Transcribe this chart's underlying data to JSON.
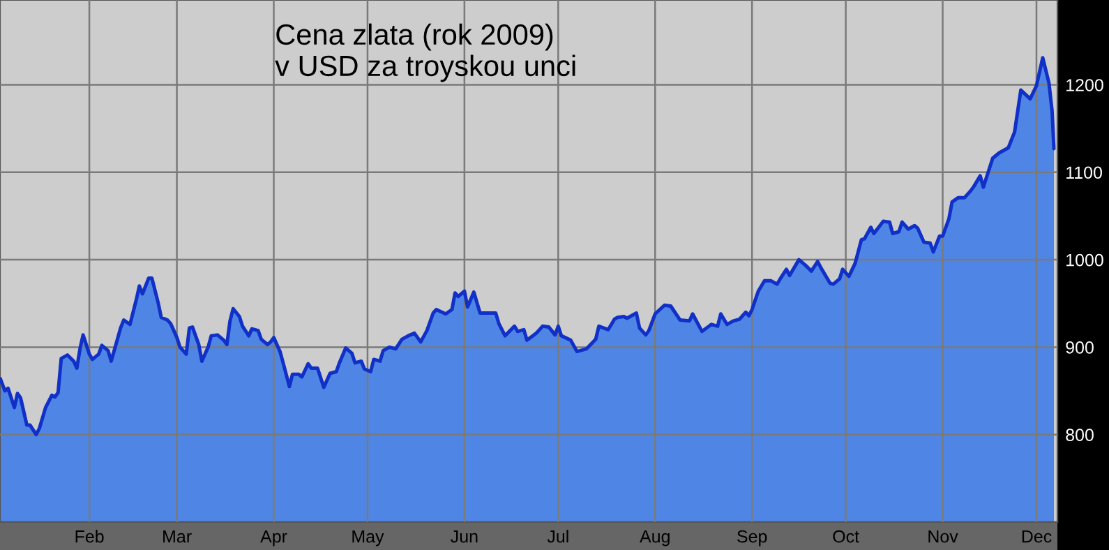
{
  "chart_data": {
    "type": "area",
    "title": "Cena zlata (rok 2009)\nv USD za troyskou unci",
    "x": [
      "2009-01-03T12:00",
      "2009-01-05",
      "2009-01-06",
      "2009-01-08",
      "2009-01-09",
      "2009-01-10",
      "2009-01-12",
      "2009-01-13",
      "2009-01-15",
      "2009-01-16",
      "2009-01-18",
      "2009-01-20",
      "2009-01-21",
      "2009-01-22",
      "2009-01-23",
      "2009-01-25",
      "2009-01-27",
      "2009-01-28",
      "2009-01-29",
      "2009-01-30",
      "2009-02-01",
      "2009-02-02",
      "2009-02-04",
      "2009-02-05",
      "2009-02-07",
      "2009-02-08",
      "2009-02-11",
      "2009-02-12",
      "2009-02-14",
      "2009-02-16",
      "2009-02-17",
      "2009-02-18",
      "2009-02-20",
      "2009-02-21",
      "2009-02-23",
      "2009-02-24",
      "2009-02-26",
      "2009-02-27",
      "2009-03-01",
      "2009-03-02",
      "2009-03-04",
      "2009-03-05",
      "2009-03-06",
      "2009-03-08",
      "2009-03-09",
      "2009-03-11",
      "2009-03-12",
      "2009-03-14",
      "2009-03-16",
      "2009-03-17",
      "2009-03-18",
      "2009-03-19",
      "2009-03-21",
      "2009-03-22",
      "2009-03-24",
      "2009-03-25",
      "2009-03-27",
      "2009-03-28",
      "2009-03-30",
      "2009-03-31",
      "2009-04-01",
      "2009-04-03",
      "2009-04-04",
      "2009-04-06",
      "2009-04-07",
      "2009-04-09",
      "2009-04-10",
      "2009-04-12",
      "2009-04-13",
      "2009-04-15",
      "2009-04-17",
      "2009-04-19",
      "2009-04-21",
      "2009-04-22",
      "2009-04-24",
      "2009-04-26",
      "2009-04-27",
      "2009-04-29",
      "2009-04-30",
      "2009-05-02",
      "2009-05-03",
      "2009-05-05",
      "2009-05-06",
      "2009-05-08",
      "2009-05-10",
      "2009-05-12",
      "2009-05-14",
      "2009-05-16",
      "2009-05-18",
      "2009-05-20",
      "2009-05-22",
      "2009-05-23",
      "2009-05-26",
      "2009-05-28",
      "2009-05-29",
      "2009-05-30",
      "2009-06-01",
      "2009-06-02",
      "2009-06-04",
      "2009-06-06",
      "2009-06-07",
      "2009-06-11",
      "2009-06-12",
      "2009-06-14",
      "2009-06-17",
      "2009-06-18",
      "2009-06-20",
      "2009-06-21",
      "2009-06-24",
      "2009-06-26",
      "2009-06-28",
      "2009-06-30",
      "2009-07-01",
      "2009-07-02",
      "2009-07-05",
      "2009-07-07",
      "2009-07-10",
      "2009-07-13",
      "2009-07-14",
      "2009-07-17",
      "2009-07-19",
      "2009-07-20",
      "2009-07-22",
      "2009-07-23",
      "2009-07-26",
      "2009-07-27",
      "2009-07-29",
      "2009-07-30",
      "2009-08-01",
      "2009-08-04",
      "2009-08-06",
      "2009-08-09",
      "2009-08-12",
      "2009-08-13",
      "2009-08-16",
      "2009-08-19",
      "2009-08-21",
      "2009-08-22",
      "2009-08-24",
      "2009-08-26",
      "2009-08-28",
      "2009-08-30",
      "2009-08-31",
      "2009-09-01",
      "2009-09-03",
      "2009-09-05",
      "2009-09-07",
      "2009-09-09",
      "2009-09-10",
      "2009-09-12",
      "2009-09-13",
      "2009-09-16",
      "2009-09-18",
      "2009-09-20",
      "2009-09-22",
      "2009-09-23",
      "2009-09-26",
      "2009-09-27",
      "2009-09-29",
      "2009-09-30",
      "2009-10-02",
      "2009-10-04",
      "2009-10-06",
      "2009-10-07",
      "2009-10-09",
      "2009-10-10",
      "2009-10-13",
      "2009-10-15",
      "2009-10-16",
      "2009-10-18",
      "2009-10-19",
      "2009-10-21",
      "2009-10-23",
      "2009-10-24",
      "2009-10-26",
      "2009-10-28",
      "2009-10-29",
      "2009-10-31",
      "2009-11-01",
      "2009-11-03",
      "2009-11-04",
      "2009-11-06",
      "2009-11-08",
      "2009-11-10",
      "2009-11-11",
      "2009-11-13",
      "2009-11-14",
      "2009-11-17",
      "2009-11-19",
      "2009-11-22",
      "2009-11-24",
      "2009-11-26",
      "2009-11-29",
      "2009-12-01",
      "2009-12-03",
      "2009-12-05",
      "2009-12-06",
      "2009-12-06T14:00"
    ],
    "series": [
      {
        "color": "#1030c8",
        "values": [
          864,
          850,
          853,
          831,
          847,
          842,
          811,
          811,
          800,
          807,
          831,
          845,
          843,
          848,
          887,
          891,
          884,
          876,
          898,
          914,
          892,
          886,
          892,
          902,
          896,
          884,
          922,
          931,
          926,
          954,
          970,
          961,
          979,
          979,
          951,
          934,
          931,
          927,
          911,
          900,
          892,
          922,
          923,
          903,
          884,
          900,
          913,
          914,
          908,
          903,
          930,
          944,
          935,
          924,
          913,
          921,
          919,
          909,
          903,
          906,
          911,
          895,
          882,
          855,
          869,
          869,
          866,
          881,
          876,
          876,
          854,
          870,
          872,
          882,
          899,
          893,
          882,
          884,
          875,
          872,
          886,
          884,
          896,
          900,
          898,
          909,
          913,
          916,
          906,
          919,
          939,
          943,
          938,
          943,
          962,
          958,
          964,
          946,
          963,
          939,
          939,
          939,
          927,
          913,
          924,
          918,
          920,
          908,
          916,
          924,
          923,
          914,
          924,
          913,
          908,
          895,
          898,
          909,
          924,
          920,
          932,
          934,
          935,
          933,
          939,
          922,
          914,
          919,
          938,
          948,
          947,
          931,
          930,
          938,
          918,
          926,
          924,
          938,
          926,
          930,
          932,
          940,
          936,
          943,
          964,
          976,
          976,
          972,
          978,
          989,
          982,
          1000,
          994,
          987,
          998,
          991,
          973,
          972,
          978,
          989,
          981,
          996,
          1023,
          1024,
          1037,
          1030,
          1044,
          1043,
          1030,
          1032,
          1043,
          1035,
          1039,
          1036,
          1020,
          1019,
          1009,
          1027,
          1027,
          1047,
          1066,
          1071,
          1071,
          1079,
          1084,
          1096,
          1083,
          1116,
          1122,
          1128,
          1146,
          1194,
          1184,
          1199,
          1231,
          1202,
          1170,
          1127
        ]
      }
    ],
    "xlim": [
      "2009-01-03T10:00",
      "2009-12-07T17:00"
    ],
    "xticks": [
      {
        "value": "2009-02-01",
        "label": "Feb"
      },
      {
        "value": "2009-03-01",
        "label": "Mar"
      },
      {
        "value": "2009-04-01",
        "label": "Apr"
      },
      {
        "value": "2009-05-01",
        "label": "May"
      },
      {
        "value": "2009-06-01",
        "label": "Jun"
      },
      {
        "value": "2009-07-01",
        "label": "Jul"
      },
      {
        "value": "2009-08-01",
        "label": "Aug"
      },
      {
        "value": "2009-09-01",
        "label": "Sep"
      },
      {
        "value": "2009-10-01",
        "label": "Oct"
      },
      {
        "value": "2009-11-01",
        "label": "Nov"
      },
      {
        "value": "2009-12-01",
        "label": "Dec"
      }
    ],
    "ylim": [
      700,
      1297
    ],
    "yticks": [
      800,
      900,
      1000,
      1100,
      1200
    ],
    "grid": true,
    "legend": false,
    "marker": "none",
    "line_style": "solid"
  }
}
